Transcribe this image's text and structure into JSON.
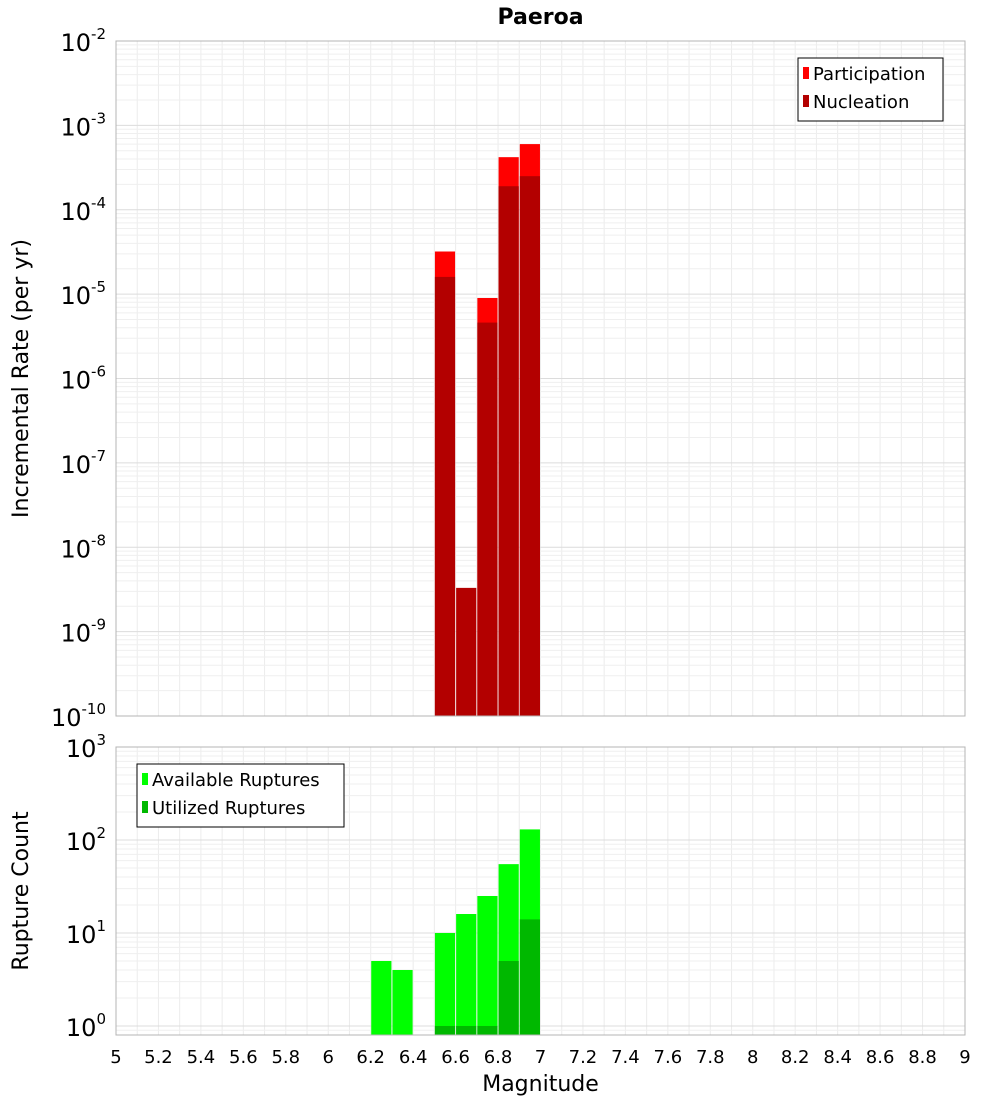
{
  "chart_data": [
    {
      "type": "bar",
      "title": "Paeroa",
      "ylabel": "Incremental Rate (per yr)",
      "xlabel": "",
      "yscale": "log",
      "xlim": [
        5,
        9
      ],
      "ylim": [
        1e-10,
        0.01
      ],
      "grid": true,
      "legend_position": "top-right",
      "y_tick_labels": [
        {
          "base": "10",
          "exp": "-10",
          "value": 1e-10
        },
        {
          "base": "10",
          "exp": "-9",
          "value": 1e-09
        },
        {
          "base": "10",
          "exp": "-8",
          "value": 1e-08
        },
        {
          "base": "10",
          "exp": "-7",
          "value": 1e-07
        },
        {
          "base": "10",
          "exp": "-6",
          "value": 1e-06
        },
        {
          "base": "10",
          "exp": "-5",
          "value": 1e-05
        },
        {
          "base": "10",
          "exp": "-4",
          "value": 0.0001
        },
        {
          "base": "10",
          "exp": "-3",
          "value": 0.001
        },
        {
          "base": "10",
          "exp": "-2",
          "value": 0.01
        }
      ],
      "x": [
        6.55,
        6.65,
        6.75,
        6.85,
        6.95
      ],
      "series": [
        {
          "name": "Participation",
          "color": "#ff0000",
          "values": [
            3.2e-05,
            0,
            9e-06,
            0.00042,
            0.0006
          ]
        },
        {
          "name": "Nucleation",
          "color": "#b30000",
          "values": [
            1.6e-05,
            3.3e-09,
            4.6e-06,
            0.00019,
            0.00025
          ]
        }
      ]
    },
    {
      "type": "bar",
      "title": "",
      "ylabel": "Rupture Count",
      "xlabel": "Magnitude",
      "yscale": "log",
      "xlim": [
        5,
        9
      ],
      "ylim": [
        0.8,
        1000
      ],
      "grid": true,
      "legend_position": "top-left",
      "x_tick_labels": [
        "5",
        "5.2",
        "5.4",
        "5.6",
        "5.8",
        "6",
        "6.2",
        "6.4",
        "6.6",
        "6.8",
        "7",
        "7.2",
        "7.4",
        "7.6",
        "7.8",
        "8",
        "8.2",
        "8.4",
        "8.6",
        "8.8",
        "9"
      ],
      "y_tick_labels": [
        {
          "base": "10",
          "exp": "0",
          "value": 1
        },
        {
          "base": "10",
          "exp": "1",
          "value": 10
        },
        {
          "base": "10",
          "exp": "2",
          "value": 100
        },
        {
          "base": "10",
          "exp": "3",
          "value": 1000
        }
      ],
      "x": [
        6.25,
        6.35,
        6.55,
        6.65,
        6.75,
        6.85,
        6.95
      ],
      "series": [
        {
          "name": "Available Ruptures",
          "color": "#00ff00",
          "values": [
            5,
            4,
            10,
            16,
            25,
            55,
            130
          ]
        },
        {
          "name": "Utilized Ruptures",
          "color": "#00b800",
          "values": [
            0,
            0,
            1,
            1,
            1,
            5,
            14
          ]
        }
      ]
    }
  ]
}
